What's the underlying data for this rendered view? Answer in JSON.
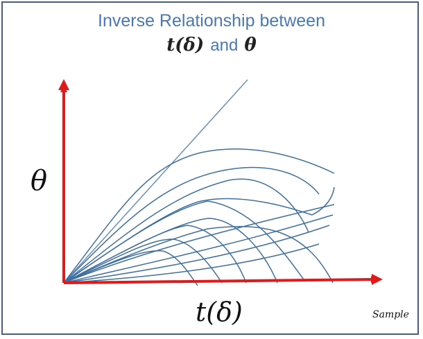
{
  "title": {
    "line1": "Inverse Relationship between",
    "t_delta": "t(δ)",
    "and": "and",
    "theta": "θ"
  },
  "axes": {
    "y_label": "θ",
    "x_label": "t(δ)"
  },
  "watermark": "Sample",
  "colors": {
    "axis": "#e01a1a",
    "curve": "#3f6f9e",
    "title": "#4a78b3",
    "frame": "#4a5e7c"
  }
}
